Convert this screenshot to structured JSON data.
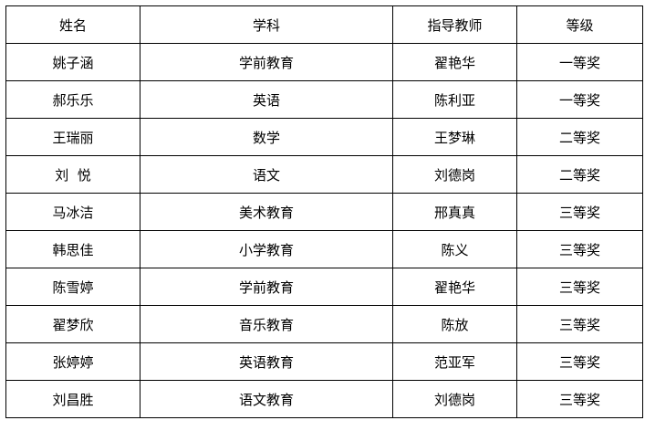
{
  "table": {
    "headers": [
      "姓名",
      "学科",
      "指导教师",
      "等级"
    ],
    "rows": [
      [
        "姚子涵",
        "学前教育",
        "翟艳华",
        "一等奖"
      ],
      [
        "郝乐乐",
        "英语",
        "陈利亚",
        "一等奖"
      ],
      [
        "王瑞丽",
        "数学",
        "王梦琳",
        "二等奖"
      ],
      [
        "刘  悦",
        "语文",
        "刘德岗",
        "二等奖"
      ],
      [
        "马冰洁",
        "美术教育",
        "邢真真",
        "三等奖"
      ],
      [
        "韩思佳",
        "小学教育",
        "陈义",
        "三等奖"
      ],
      [
        "陈雪婷",
        "学前教育",
        "翟艳华",
        "三等奖"
      ],
      [
        "翟梦欣",
        "音乐教育",
        "陈放",
        "三等奖"
      ],
      [
        "张婷婷",
        "英语教育",
        "范亚军",
        "三等奖"
      ],
      [
        "刘昌胜",
        "语文教育",
        "刘德岗",
        "三等奖"
      ]
    ]
  }
}
